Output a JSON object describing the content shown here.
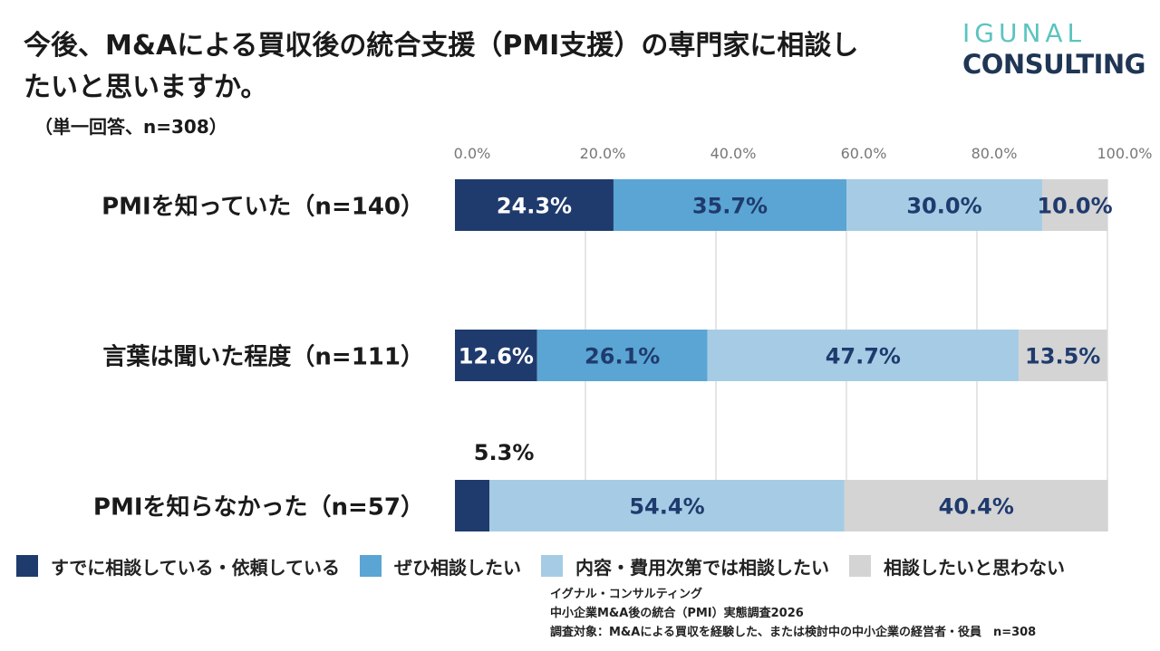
{
  "header": {
    "title": "今後、M&Aによる買収後の統合支援（PMI支援）の専門家に相談したいと思いますか。",
    "subtitle": "（単一回答、n=308）"
  },
  "logo": {
    "line1": "IGUNAL",
    "line2": "CONSULTING"
  },
  "colors": {
    "logo_top": "#5bc4c0",
    "logo_bottom": "#1f3654",
    "series": [
      "#1f3b6e",
      "#5aa5d3",
      "#a5cce4",
      "#d4d4d4"
    ],
    "grid": "#cccccc",
    "axis_text": "#777777"
  },
  "chart_data": {
    "type": "bar",
    "orientation": "horizontal",
    "stacked": true,
    "title": "今後、M&Aによる買収後の統合支援（PMI支援）の専門家に相談したいと思いますか。",
    "categories": [
      "PMIを知っていた（n=140）",
      "言葉は聞いた程度（n=111）",
      "PMIを知らなかった（n=57）"
    ],
    "xlim": [
      0,
      100
    ],
    "ticks": [
      0,
      20,
      40,
      60,
      80,
      100
    ],
    "tick_labels": [
      "0.0%",
      "20.0%",
      "40.0%",
      "60.0%",
      "80.0%",
      "100.0%"
    ],
    "series": [
      {
        "name": "すでに相談している・依頼している",
        "values": [
          24.3,
          12.6,
          5.3
        ],
        "labels": [
          "24.3%",
          "12.6%",
          "5.3%"
        ]
      },
      {
        "name": "ぜひ相談したい",
        "values": [
          35.7,
          26.1,
          0
        ],
        "labels": [
          "35.7%",
          "26.1%",
          ""
        ]
      },
      {
        "name": "内容・費用次第では相談したい",
        "values": [
          30.0,
          47.7,
          54.4
        ],
        "labels": [
          "30.0%",
          "47.7%",
          "54.4%"
        ]
      },
      {
        "name": "相談したいと思わない",
        "values": [
          10.0,
          13.5,
          40.4
        ],
        "labels": [
          "10.0%",
          "13.5%",
          "40.4%"
        ]
      }
    ],
    "legend_position": "bottom"
  },
  "legend": [
    {
      "label": "すでに相談している・依頼している"
    },
    {
      "label": "ぜひ相談したい"
    },
    {
      "label": "内容・費用次第では相談したい"
    },
    {
      "label": "相談したいと思わない"
    }
  ],
  "footnote": {
    "line1": "イグナル・コンサルティング",
    "line2": "中小企業M&A後の統合（PMI）実態調査2026",
    "line3": "調査対象：M&Aによる買収を経験した、または検討中の中小企業の経営者・役員　n=308"
  }
}
